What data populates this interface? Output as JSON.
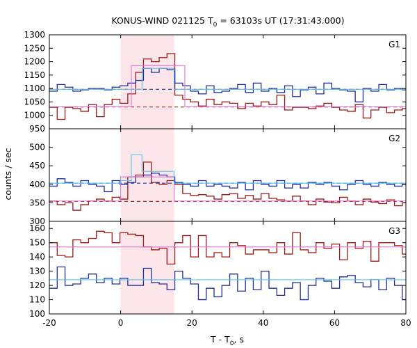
{
  "colors": {
    "red": "#a01616",
    "blue": "#1f2d9e",
    "cyan": "#55c4ec",
    "magenta": "#e472d8",
    "shade": "#fde6e9"
  },
  "chart_data": {
    "type": "line",
    "title": "KONUS-WIND 021125 T",
    "title_sub": "0",
    "title_rest": " = 63103s UT (17:31:43.000)",
    "xlabel": "T - T",
    "xlabel_sub": "0",
    "xlabel_rest": ", s",
    "ylabel": "counts / sec",
    "xlim": [
      -20,
      80
    ],
    "xticks": [
      "-20",
      "0",
      "20",
      "40",
      "60",
      "80"
    ],
    "highlight_interval": [
      0,
      15
    ],
    "panels": [
      {
        "name": "G1",
        "ylim": [
          950,
          1300
        ],
        "yticks": [
          "950",
          "1000",
          "1050",
          "1100",
          "1150",
          "1200",
          "1250",
          "1300"
        ],
        "series": [
          {
            "color": "red",
            "style": "step",
            "x": [
              -20,
              -17.8,
              -15.6,
              -13.4,
              -11.2,
              -9,
              -6.8,
              -4.6,
              -2.4,
              -0.2,
              2,
              4.2,
              6.4,
              8.6,
              10.8,
              13,
              15.2,
              17.4,
              19.6,
              21.8,
              24,
              26.2,
              28.4,
              30.6,
              32.8,
              35,
              37.2,
              39.4,
              41.6,
              43.8,
              46,
              48.2,
              50.4,
              52.6,
              54.8,
              57,
              59.2,
              61.4,
              63.6,
              65.8,
              68,
              70.2,
              72.4,
              74.6,
              76.8,
              79,
              80
            ],
            "y": [
              1030,
              985,
              1030,
              1025,
              1015,
              1040,
              995,
              1040,
              1060,
              1045,
              1080,
              1160,
              1210,
              1200,
              1215,
              1230,
              1075,
              1060,
              1050,
              1035,
              1060,
              1040,
              1050,
              1045,
              1025,
              1045,
              1035,
              1050,
              1040,
              1075,
              1020,
              1030,
              1030,
              1025,
              1035,
              1045,
              1030,
              1020,
              1015,
              1040,
              990,
              1020,
              1030,
              1010,
              1020,
              1025,
              1025
            ]
          },
          {
            "color": "blue",
            "style": "step",
            "x": [
              -20,
              -17.8,
              -15.6,
              -13.4,
              -11.2,
              -9,
              -6.8,
              -4.6,
              -2.4,
              -0.2,
              2,
              4.2,
              6.4,
              8.6,
              10.8,
              13,
              15.2,
              17.4,
              19.6,
              21.8,
              24,
              26.2,
              28.4,
              30.6,
              32.8,
              35,
              37.2,
              39.4,
              41.6,
              43.8,
              46,
              48.2,
              50.4,
              52.6,
              54.8,
              57,
              59.2,
              61.4,
              63.6,
              65.8,
              68,
              70.2,
              72.4,
              74.6,
              76.8,
              79,
              80
            ],
            "y": [
              1090,
              1115,
              1105,
              1090,
              1095,
              1100,
              1100,
              1095,
              1105,
              1110,
              1120,
              1130,
              1175,
              1160,
              1175,
              1170,
              1120,
              1110,
              1090,
              1080,
              1110,
              1085,
              1090,
              1100,
              1115,
              1085,
              1120,
              1090,
              1100,
              1085,
              1110,
              1070,
              1095,
              1105,
              1080,
              1120,
              1100,
              1095,
              1090,
              1050,
              1100,
              1090,
              1115,
              1095,
              1100,
              1095,
              1095
            ]
          },
          {
            "color": "red",
            "style": "dashed",
            "x": [
              -20,
              80
            ],
            "y": [
              1031,
              1031
            ]
          },
          {
            "color": "blue",
            "style": "dashed",
            "x": [
              -20,
              80
            ],
            "y": [
              1097,
              1097
            ]
          },
          {
            "color": "magenta",
            "style": "step",
            "x": [
              -20,
              3,
              18,
              80
            ],
            "y": [
              1032,
              1185,
              1032,
              1032
            ]
          },
          {
            "color": "cyan",
            "style": "step",
            "x": [
              -20,
              6,
              15,
              80
            ],
            "y": [
              1097,
              1175,
              1097,
              1097
            ]
          }
        ]
      },
      {
        "name": "G2",
        "ylim": [
          300,
          550
        ],
        "yticks": [
          "300",
          "350",
          "400",
          "450",
          "500"
        ],
        "series": [
          {
            "color": "red",
            "style": "step",
            "x": [
              -20,
              -17.8,
              -15.6,
              -13.4,
              -11.2,
              -9,
              -6.8,
              -4.6,
              -2.4,
              -0.2,
              2,
              4.2,
              6.4,
              8.6,
              10.8,
              13,
              15.2,
              17.4,
              19.6,
              21.8,
              24,
              26.2,
              28.4,
              30.6,
              32.8,
              35,
              37.2,
              39.4,
              41.6,
              43.8,
              46,
              48.2,
              50.4,
              52.6,
              54.8,
              57,
              59.2,
              61.4,
              63.6,
              65.8,
              68,
              70.2,
              72.4,
              74.6,
              76.8,
              79,
              80
            ],
            "y": [
              355,
              345,
              350,
              330,
              345,
              355,
              360,
              355,
              365,
              360,
              420,
              425,
              460,
              405,
              400,
              410,
              400,
              375,
              370,
              372,
              368,
              360,
              372,
              375,
              362,
              370,
              360,
              375,
              362,
              358,
              355,
              368,
              355,
              345,
              360,
              352,
              350,
              365,
              355,
              345,
              360,
              352,
              348,
              358,
              342,
              350,
              350
            ]
          },
          {
            "color": "blue",
            "style": "step",
            "x": [
              -20,
              -17.8,
              -15.6,
              -13.4,
              -11.2,
              -9,
              -6.8,
              -4.6,
              -2.4,
              -0.2,
              2,
              4.2,
              6.4,
              8.6,
              10.8,
              13,
              15.2,
              17.4,
              19.6,
              21.8,
              24,
              26.2,
              28.4,
              30.6,
              32.8,
              35,
              37.2,
              39.4,
              41.6,
              43.8,
              46,
              48.2,
              50.4,
              52.6,
              54.8,
              57,
              59.2,
              61.4,
              63.6,
              65.8,
              68,
              70.2,
              72.4,
              74.6,
              76.8,
              79,
              80
            ],
            "y": [
              395,
              415,
              405,
              395,
              410,
              400,
              395,
              380,
              410,
              400,
              405,
              420,
              425,
              430,
              425,
              420,
              405,
              400,
              395,
              410,
              395,
              400,
              395,
              390,
              405,
              385,
              410,
              400,
              395,
              410,
              390,
              400,
              390,
              405,
              400,
              405,
              395,
              385,
              400,
              410,
              400,
              395,
              405,
              400,
              395,
              400,
              400
            ]
          },
          {
            "color": "red",
            "style": "dashed",
            "x": [
              -20,
              80
            ],
            "y": [
              354,
              354
            ]
          },
          {
            "color": "blue",
            "style": "dashed",
            "x": [
              -20,
              80
            ],
            "y": [
              403,
              403
            ]
          },
          {
            "color": "magenta",
            "style": "step",
            "x": [
              -20,
              0,
              15,
              80
            ],
            "y": [
              355,
              420,
              355,
              355
            ]
          },
          {
            "color": "cyan",
            "style": "step",
            "x": [
              -20,
              0,
              3,
              6,
              15,
              80
            ],
            "y": [
              403,
              410,
              480,
              435,
              403,
              403
            ]
          }
        ]
      },
      {
        "name": "G3",
        "ylim": [
          100,
          165
        ],
        "yticks": [
          "100",
          "110",
          "120",
          "130",
          "140",
          "150",
          "160"
        ],
        "series": [
          {
            "color": "red",
            "style": "step",
            "x": [
              -20,
              -17.8,
              -15.6,
              -13.4,
              -11.2,
              -9,
              -6.8,
              -4.6,
              -2.4,
              -0.2,
              2,
              4.2,
              6.4,
              8.6,
              10.8,
              13,
              15.2,
              17.4,
              19.6,
              21.8,
              24,
              26.2,
              28.4,
              30.6,
              32.8,
              35,
              37.2,
              39.4,
              41.6,
              43.8,
              46,
              48.2,
              50.4,
              52.6,
              54.8,
              57,
              59.2,
              61.4,
              63.6,
              65.8,
              68,
              70.2,
              72.4,
              74.6,
              76.8,
              79,
              80
            ],
            "y": [
              150,
              141,
              140,
              152,
              150,
              153,
              158,
              157,
              150,
              157,
              156,
              155,
              147,
              145,
              146,
              135,
              150,
              155,
              140,
              155,
              140,
              143,
              140,
              150,
              148,
              142,
              145,
              145,
              143,
              150,
              142,
              157,
              145,
              143,
              150,
              146,
              149,
              138,
              150,
              146,
              151,
              137,
              150,
              150,
              148,
              142,
              142
            ]
          },
          {
            "color": "blue",
            "style": "step",
            "x": [
              -20,
              -17.8,
              -15.6,
              -13.4,
              -11.2,
              -9,
              -6.8,
              -4.6,
              -2.4,
              -0.2,
              2,
              4.2,
              6.4,
              8.6,
              10.8,
              13,
              15.2,
              17.4,
              19.6,
              21.8,
              24,
              26.2,
              28.4,
              30.6,
              32.8,
              35,
              37.2,
              39.4,
              41.6,
              43.8,
              46,
              48.2,
              50.4,
              52.6,
              54.8,
              57,
              59.2,
              61.4,
              63.6,
              65.8,
              68,
              70.2,
              72.4,
              74.6,
              76.8,
              79,
              80
            ],
            "y": [
              118,
              133,
              120,
              121,
              125,
              128,
              122,
              125,
              121,
              125,
              120,
              120,
              132,
              122,
              121,
              117,
              130,
              125,
              121,
              110,
              118,
              112,
              120,
              128,
              116,
              125,
              117,
              130,
              118,
              113,
              118,
              122,
              110,
              120,
              125,
              123,
              118,
              126,
              127,
              122,
              119,
              124,
              117,
              125,
              120,
              110,
              110
            ]
          },
          {
            "color": "magenta",
            "style": "step",
            "x": [
              -20,
              80
            ],
            "y": [
              147,
              147
            ]
          },
          {
            "color": "cyan",
            "style": "step",
            "x": [
              -20,
              80
            ],
            "y": [
              124,
              124
            ]
          }
        ]
      }
    ]
  }
}
